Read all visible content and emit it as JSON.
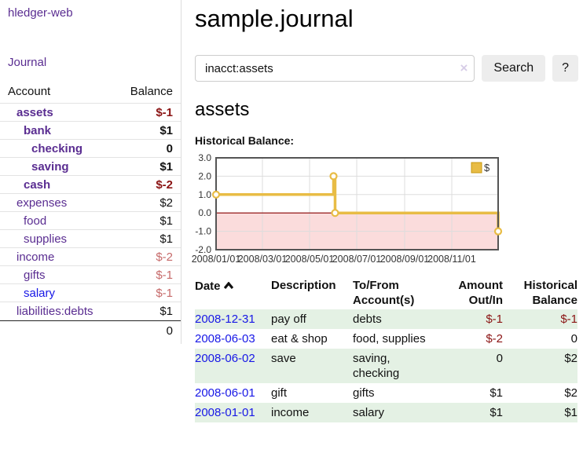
{
  "sidebar": {
    "brand": "hledger-web",
    "journal_link": "Journal",
    "accounts": {
      "col_account": "Account",
      "col_balance": "Balance",
      "rows": [
        {
          "name": "assets",
          "balance": "$-1"
        },
        {
          "name": "bank",
          "balance": "$1"
        },
        {
          "name": "checking",
          "balance": "0"
        },
        {
          "name": "saving",
          "balance": "$1"
        },
        {
          "name": "cash",
          "balance": "$-2"
        },
        {
          "name": "expenses",
          "balance": "$2"
        },
        {
          "name": "food",
          "balance": "$1"
        },
        {
          "name": "supplies",
          "balance": "$1"
        },
        {
          "name": "income",
          "balance": "$-2"
        },
        {
          "name": "gifts",
          "balance": "$-1"
        },
        {
          "name": "salary",
          "balance": "$-1"
        },
        {
          "name": "liabilities:debts",
          "balance": "$1"
        }
      ],
      "total": "0"
    }
  },
  "main": {
    "title": "sample.journal",
    "search": {
      "value": "inacct:assets",
      "clear_icon": "×",
      "button": "Search",
      "help_button": "?"
    },
    "account_heading": "assets",
    "chart_label": "Historical Balance:"
  },
  "chart_data": {
    "type": "line",
    "title": "Historical Balance",
    "step": true,
    "series": [
      {
        "name": "$",
        "points": [
          {
            "x": "2008-01-01",
            "y": 1
          },
          {
            "x": "2008-06-01",
            "y": 2
          },
          {
            "x": "2008-06-03",
            "y": 0
          },
          {
            "x": "2008-12-31",
            "y": -1
          }
        ]
      }
    ],
    "x_range": [
      "2008-01-01",
      "2008-12-31"
    ],
    "ylim": [
      -2,
      3
    ],
    "y_ticks": [
      3.0,
      2.0,
      1.0,
      0.0,
      -1.0,
      -2.0
    ],
    "x_ticks": [
      {
        "date": "2008-01-01",
        "label": "2008/01/01"
      },
      {
        "date": "2008-03-01",
        "label": "2008/03/01"
      },
      {
        "date": "2008-05-01",
        "label": "2008/05/01"
      },
      {
        "date": "2008-07-01",
        "label": "2008/07/01"
      },
      {
        "date": "2008-09-01",
        "label": "2008/09/01"
      },
      {
        "date": "2008-11-01",
        "label": "2008/11/01"
      }
    ],
    "grid": true,
    "legend_position": "top-right",
    "line_color": "#e8bc45",
    "negative_region_color": "#fbdcdc",
    "zero_line_color": "#8b0000"
  },
  "register_table": {
    "headers": {
      "date": "Date",
      "description": "Description",
      "accounts": "To/From Account(s)",
      "amount": "Amount Out/In",
      "balance": "Historical Balance"
    },
    "rows": [
      {
        "date": "2008-12-31",
        "description": "pay off",
        "accounts": "debts",
        "amount": "$-1",
        "balance": "$-1"
      },
      {
        "date": "2008-06-03",
        "description": "eat & shop",
        "accounts": "food, supplies",
        "amount": "$-2",
        "balance": "0"
      },
      {
        "date": "2008-06-02",
        "description": "save",
        "accounts": "saving, checking",
        "amount": "0",
        "balance": "$2"
      },
      {
        "date": "2008-06-01",
        "description": "gift",
        "accounts": "gifts",
        "amount": "$1",
        "balance": "$2"
      },
      {
        "date": "2008-01-01",
        "description": "income",
        "accounts": "salary",
        "amount": "$1",
        "balance": "$1"
      }
    ]
  },
  "colors": {
    "accent_purple": "#5a2d91",
    "link_blue": "#1717e6",
    "negative_strong": "#8b1414",
    "negative_muted": "#c66a6a",
    "row_green": "#e4f1e4",
    "chart_gold": "#e8bc45",
    "chart_pink": "#fbdcdc",
    "zero_line_red": "#8b0000"
  }
}
